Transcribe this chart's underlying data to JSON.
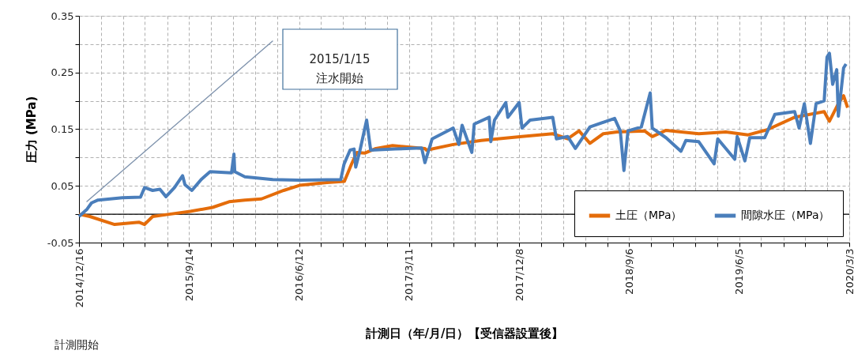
{
  "chart_data": {
    "type": "line",
    "xlabel": "計測日（年/月/日）【受信器設置後】",
    "ylabel": "圧力 (MPa)",
    "annotations": [
      "2015/1/15\n注水開始",
      "計測開始"
    ],
    "series": [
      {
        "name": "土圧（MPa）",
        "color": "#e46c0a",
        "x": [
          "2014-12-16",
          "2015-01-12",
          "2015-03-14",
          "2015-05-13",
          "2015-05-27",
          "2015-06-16",
          "2015-07-27",
          "2015-09-17",
          "2015-11-11",
          "2015-12-22",
          "2016-01-30",
          "2016-03-11",
          "2016-05-05",
          "2016-06-13",
          "2016-08-20",
          "2016-10-02",
          "2016-10-20",
          "2016-11-02",
          "2016-11-22",
          "2016-12-19",
          "2017-01-29",
          "2017-04-19",
          "2017-04-23",
          "2017-06-28",
          "2017-09-05",
          "2017-12-15",
          "2018-03-01",
          "2018-04-07",
          "2018-05-05",
          "2018-06-01",
          "2018-07-04",
          "2018-08-07",
          "2018-10-14",
          "2018-11-02",
          "2018-12-06",
          "2019-02-25",
          "2019-05-03",
          "2019-06-27",
          "2019-08-13",
          "2019-10-20",
          "2020-01-01",
          "2020-01-14",
          "2020-02-05",
          "2020-02-18",
          "2020-02-28"
        ],
        "values": [
          0,
          -0.004,
          -0.018,
          -0.014,
          -0.018,
          -0.004,
          0,
          0.005,
          0.012,
          0.022,
          0.025,
          0.027,
          0.042,
          0.051,
          0.056,
          0.058,
          0.089,
          0.109,
          0.108,
          0.116,
          0.121,
          0.116,
          0.113,
          0.123,
          0.13,
          0.137,
          0.142,
          0.133,
          0.147,
          0.125,
          0.142,
          0.145,
          0.147,
          0.137,
          0.148,
          0.142,
          0.145,
          0.14,
          0.149,
          0.171,
          0.181,
          0.164,
          0.195,
          0.209,
          0.188
        ]
      },
      {
        "name": "間隙水圧（MPa）",
        "color": "#4a7ebb",
        "x": [
          "2014-12-16",
          "2015-01-05",
          "2015-01-16",
          "2015-02-01",
          "2015-04-02",
          "2015-05-17",
          "2015-05-27",
          "2015-06-16",
          "2015-07-04",
          "2015-07-19",
          "2015-08-09",
          "2015-08-29",
          "2015-09-04",
          "2015-09-21",
          "2015-10-15",
          "2015-11-05",
          "2015-12-28",
          "2016-01-03",
          "2016-01-05",
          "2016-01-30",
          "2016-04-08",
          "2016-06-13",
          "2016-09-23",
          "2016-10-01",
          "2016-10-16",
          "2016-10-26",
          "2016-10-30",
          "2016-11-09",
          "2016-11-26",
          "2016-12-06",
          "2017-02-04",
          "2017-04-11",
          "2017-04-19",
          "2017-05-07",
          "2017-06-28",
          "2017-07-12",
          "2017-07-20",
          "2017-08-13",
          "2017-08-19",
          "2017-09-25",
          "2017-09-29",
          "2017-10-08",
          "2017-11-05",
          "2017-11-10",
          "2017-12-08",
          "2017-12-15",
          "2018-01-04",
          "2018-03-01",
          "2018-03-10",
          "2018-04-07",
          "2018-04-26",
          "2018-06-01",
          "2018-08-01",
          "2018-08-15",
          "2018-08-24",
          "2018-09-03",
          "2018-10-06",
          "2018-10-28",
          "2018-11-02",
          "2018-12-06",
          "2019-01-12",
          "2019-01-24",
          "2019-02-25",
          "2019-04-04",
          "2019-04-13",
          "2019-05-25",
          "2019-05-31",
          "2019-06-19",
          "2019-07-01",
          "2019-08-07",
          "2019-09-01",
          "2019-10-20",
          "2019-10-31",
          "2019-11-13",
          "2019-11-28",
          "2019-12-12",
          "2020-01-01",
          "2020-01-08",
          "2020-01-14",
          "2020-01-22",
          "2020-02-01",
          "2020-02-05",
          "2020-02-18",
          "2020-02-24"
        ],
        "values": [
          -0.004,
          0.009,
          0.02,
          0.025,
          0.029,
          0.03,
          0.047,
          0.042,
          0.044,
          0.031,
          0.047,
          0.068,
          0.052,
          0.042,
          0.062,
          0.075,
          0.073,
          0.106,
          0.075,
          0.066,
          0.061,
          0.06,
          0.061,
          0.088,
          0.113,
          0.115,
          0.083,
          0.111,
          0.166,
          0.113,
          0.115,
          0.117,
          0.091,
          0.133,
          0.152,
          0.123,
          0.157,
          0.109,
          0.159,
          0.171,
          0.128,
          0.166,
          0.197,
          0.171,
          0.197,
          0.152,
          0.166,
          0.171,
          0.133,
          0.137,
          0.116,
          0.154,
          0.169,
          0.147,
          0.077,
          0.147,
          0.154,
          0.214,
          0.152,
          0.135,
          0.111,
          0.13,
          0.128,
          0.089,
          0.133,
          0.097,
          0.137,
          0.094,
          0.135,
          0.135,
          0.176,
          0.181,
          0.152,
          0.195,
          0.125,
          0.195,
          0.2,
          0.277,
          0.284,
          0.229,
          0.255,
          0.173,
          0.258,
          0.265
        ]
      }
    ],
    "xlim": [
      "2014-12-16",
      "2020-03-03"
    ],
    "xticks": [
      {
        "value": "2014-12-16",
        "label": "2014/12/16"
      },
      {
        "value": "2015-02-08",
        "label": null
      },
      {
        "value": "2015-04-04",
        "label": null
      },
      {
        "value": "2015-05-28",
        "label": null
      },
      {
        "value": "2015-07-22",
        "label": null
      },
      {
        "value": "2015-09-14",
        "label": "2015/9/14"
      },
      {
        "value": "2015-11-07",
        "label": null
      },
      {
        "value": "2016-01-01",
        "label": null
      },
      {
        "value": "2016-02-24",
        "label": null
      },
      {
        "value": "2016-04-19",
        "label": null
      },
      {
        "value": "2016-06-12",
        "label": "2016/6/12"
      },
      {
        "value": "2016-08-05",
        "label": null
      },
      {
        "value": "2016-09-29",
        "label": null
      },
      {
        "value": "2016-11-22",
        "label": null
      },
      {
        "value": "2017-01-16",
        "label": null
      },
      {
        "value": "2017-03-11",
        "label": "2017/3/11"
      },
      {
        "value": "2017-05-04",
        "label": null
      },
      {
        "value": "2017-06-28",
        "label": null
      },
      {
        "value": "2017-08-21",
        "label": null
      },
      {
        "value": "2017-10-15",
        "label": null
      },
      {
        "value": "2017-12-08",
        "label": "2017/12/8"
      },
      {
        "value": "2018-01-31",
        "label": null
      },
      {
        "value": "2018-03-27",
        "label": null
      },
      {
        "value": "2018-05-20",
        "label": null
      },
      {
        "value": "2018-07-14",
        "label": null
      },
      {
        "value": "2018-09-06",
        "label": "2018/9/6"
      },
      {
        "value": "2018-10-30",
        "label": null
      },
      {
        "value": "2018-12-24",
        "label": null
      },
      {
        "value": "2019-02-16",
        "label": null
      },
      {
        "value": "2019-04-12",
        "label": null
      },
      {
        "value": "2019-06-05",
        "label": "2019/6/5"
      },
      {
        "value": "2019-07-29",
        "label": null
      },
      {
        "value": "2019-09-22",
        "label": null
      },
      {
        "value": "2019-11-15",
        "label": null
      },
      {
        "value": "2020-01-09",
        "label": null
      },
      {
        "value": "2020-03-03",
        "label": "2020/3/3"
      }
    ],
    "ylim": [
      -0.05,
      0.35
    ],
    "yticks": [
      {
        "value": -0.05,
        "label": "-0.05"
      },
      {
        "value": 0,
        "label": null
      },
      {
        "value": 0.05,
        "label": "0.05"
      },
      {
        "value": 0.1,
        "label": null
      },
      {
        "value": 0.15,
        "label": "0.15"
      },
      {
        "value": 0.2,
        "label": null
      },
      {
        "value": 0.25,
        "label": "0.25"
      },
      {
        "value": 0.3,
        "label": null
      },
      {
        "value": 0.35,
        "label": "0.35"
      }
    ],
    "ref_lines": [
      {
        "axis": "y",
        "value": 0,
        "color": "#000000"
      }
    ],
    "grid": true,
    "legend": "bottom right"
  }
}
